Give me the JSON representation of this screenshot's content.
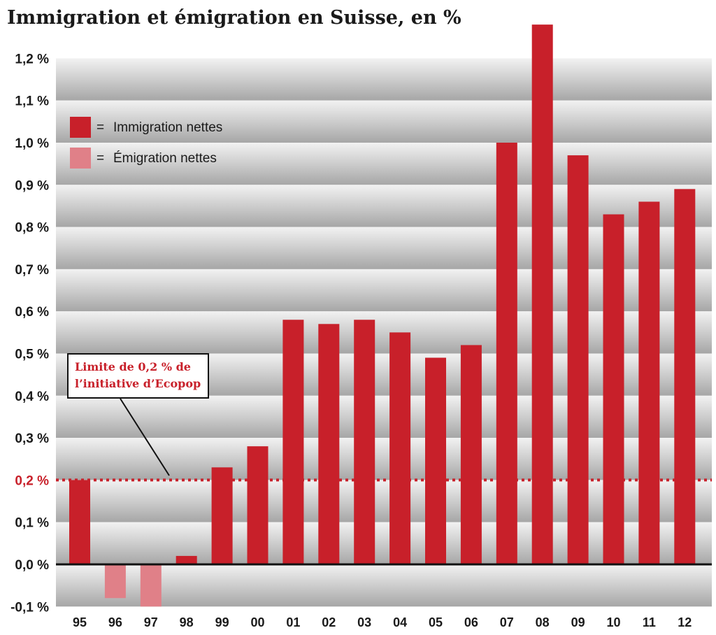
{
  "chart_data": {
    "type": "bar",
    "title": "Immigration et émigration en Suisse, en %",
    "categories": [
      "95",
      "96",
      "97",
      "98",
      "99",
      "00",
      "01",
      "02",
      "03",
      "04",
      "05",
      "06",
      "07",
      "08",
      "09",
      "10",
      "11",
      "12"
    ],
    "series": [
      {
        "name": "Immigration nettes",
        "color": "#c8202a",
        "values": [
          0.2,
          null,
          null,
          0.02,
          0.23,
          0.28,
          0.58,
          0.57,
          0.58,
          0.55,
          0.49,
          0.52,
          1.0,
          1.28,
          0.97,
          0.83,
          0.86,
          0.89
        ]
      },
      {
        "name": "Émigration nettes",
        "color": "#e08088",
        "values": [
          null,
          -0.08,
          -0.1,
          null,
          null,
          null,
          null,
          null,
          null,
          null,
          null,
          null,
          null,
          null,
          null,
          null,
          null,
          null
        ]
      }
    ],
    "legend_sign": "=",
    "yticks": [
      -0.1,
      0.0,
      0.1,
      0.2,
      0.3,
      0.4,
      0.5,
      0.6,
      0.7,
      0.8,
      0.9,
      1.0,
      1.1,
      1.2
    ],
    "ytick_labels": [
      "-0,1 %",
      "0,0 %",
      "0,1 %",
      "0,2 %",
      "0,3 %",
      "0,4 %",
      "0,5 %",
      "0,6 %",
      "0,7 %",
      "0,8 %",
      "0,9 %",
      "1,0 %",
      "1,1 %",
      "1,2 %"
    ],
    "highlight_tick": "0,2 %",
    "ylim": [
      -0.1,
      1.3
    ],
    "xlabel": "",
    "ylabel": "",
    "grid": true,
    "legend_position": "top-left",
    "threshold": {
      "value": 0.2,
      "color": "#c8202a",
      "label_lines": [
        "Limite de 0,2 % de",
        "l’initiative d’Ecopop"
      ]
    }
  }
}
